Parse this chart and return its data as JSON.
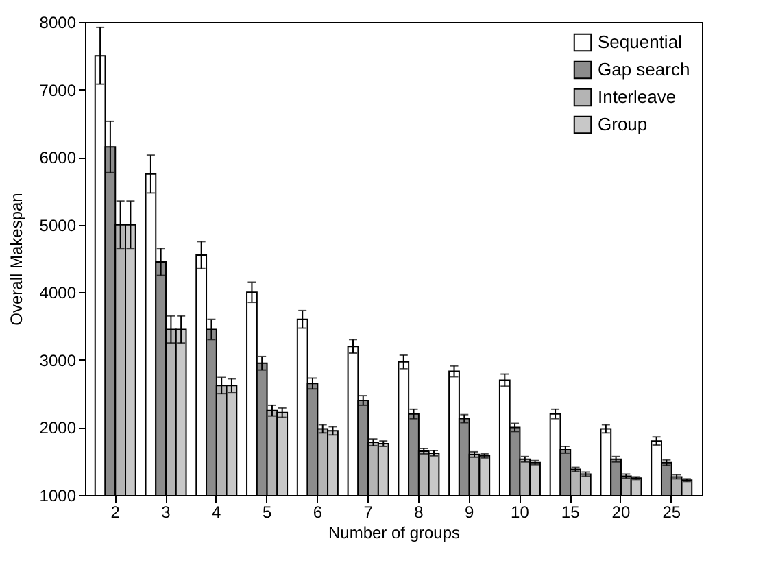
{
  "chart_data": {
    "type": "bar",
    "xlabel": "Number of groups",
    "ylabel": "Overall Makespan",
    "categories": [
      "2",
      "3",
      "4",
      "5",
      "6",
      "7",
      "8",
      "9",
      "10",
      "15",
      "20",
      "25"
    ],
    "series": [
      {
        "name": "Sequential",
        "color": "#ffffff",
        "values": [
          7500,
          5750,
          4550,
          4000,
          3600,
          3200,
          2970,
          2830,
          2700,
          2200,
          1980,
          1800
        ],
        "errors": [
          420,
          280,
          200,
          150,
          130,
          100,
          100,
          80,
          90,
          70,
          60,
          60
        ]
      },
      {
        "name": "Gap search",
        "color": "#8c8c8c",
        "values": [
          6150,
          4450,
          3450,
          2950,
          2650,
          2400,
          2200,
          2130,
          2000,
          1670,
          1530,
          1480
        ],
        "errors": [
          380,
          200,
          150,
          100,
          80,
          70,
          70,
          60,
          60,
          50,
          40,
          40
        ]
      },
      {
        "name": "Interleave",
        "color": "#b4b4b4",
        "values": [
          5000,
          3450,
          2620,
          2250,
          1980,
          1780,
          1650,
          1600,
          1530,
          1380,
          1280,
          1270
        ],
        "errors": [
          350,
          200,
          120,
          80,
          60,
          50,
          40,
          40,
          40,
          30,
          30,
          30
        ]
      },
      {
        "name": "Group",
        "color": "#c8c8c8",
        "values": [
          5000,
          3450,
          2620,
          2220,
          1950,
          1760,
          1620,
          1580,
          1480,
          1310,
          1250,
          1220
        ],
        "errors": [
          350,
          200,
          100,
          70,
          60,
          40,
          40,
          30,
          30,
          30,
          20,
          20
        ]
      }
    ],
    "ylim": [
      1000,
      8000
    ],
    "yticks": [
      1000,
      2000,
      3000,
      4000,
      5000,
      6000,
      7000,
      8000
    ],
    "legend": "top right",
    "grid": false
  }
}
